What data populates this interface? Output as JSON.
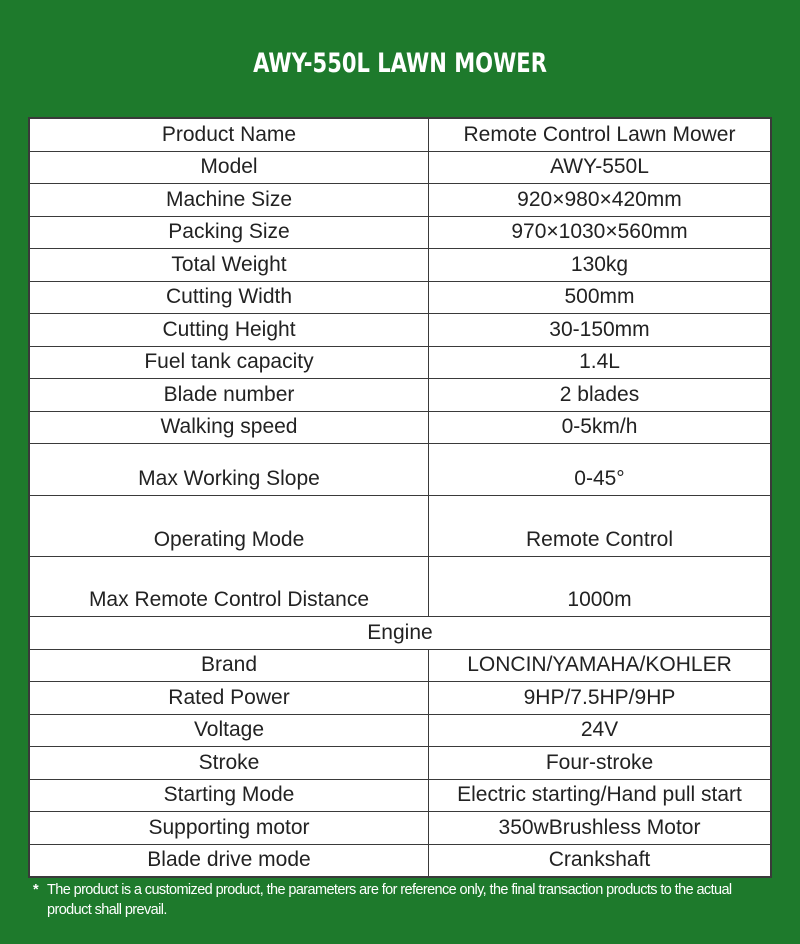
{
  "title": "AWY-550L LAWN MOWER",
  "spec_rows": [
    {
      "label": "Product Name",
      "value": "Remote Control Lawn Mower"
    },
    {
      "label": "Model",
      "value": "AWY-550L"
    },
    {
      "label": "Machine Size",
      "value": "920×980×420mm"
    },
    {
      "label": "Packing Size",
      "value": "970×1030×560mm"
    },
    {
      "label": "Total Weight",
      "value": "130kg"
    },
    {
      "label": "Cutting Width",
      "value": "500mm"
    },
    {
      "label": "Cutting Height",
      "value": "30-150mm"
    },
    {
      "label": "Fuel tank capacity",
      "value": "1.4L"
    },
    {
      "label": "Blade number",
      "value": "2 blades"
    },
    {
      "label": "Walking speed",
      "value": "0-5km/h"
    },
    {
      "label": "Max Working Slope",
      "value": "0-45°"
    },
    {
      "label": "Operating Mode",
      "value": "Remote Control"
    },
    {
      "label": "Max Remote Control Distance",
      "value": "1000m"
    }
  ],
  "engine_header": "Engine",
  "engine_rows": [
    {
      "label": "Brand",
      "value": "LONCIN/YAMAHA/KOHLER"
    },
    {
      "label": "Rated Power",
      "value": "9HP/7.5HP/9HP"
    },
    {
      "label": "Voltage",
      "value": "24V"
    },
    {
      "label": "Stroke",
      "value": "Four-stroke"
    },
    {
      "label": "Starting Mode",
      "value": "Electric starting/Hand pull start"
    },
    {
      "label": "Supporting motor",
      "value": "350wBrushless Motor"
    },
    {
      "label": "Blade drive mode",
      "value": "Crankshaft"
    }
  ],
  "footnote": {
    "marker": "*",
    "text": "The product is a customized product, the parameters are for reference only, the final transaction products to the actual product shall prevail."
  },
  "colors": {
    "background": "#1e7a2c",
    "table": "#ffffff",
    "border": "#3a3a3a"
  }
}
